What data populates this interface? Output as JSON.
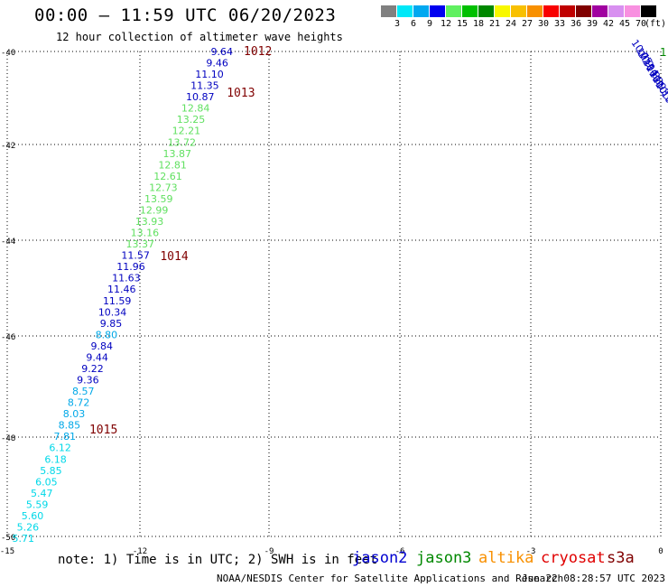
{
  "header": {
    "title": "00:00 – 11:59 UTC 06/20/2023",
    "subtitle": "12 hour collection of altimeter wave heights"
  },
  "colorbar": {
    "labels": [
      "3",
      "6",
      "9",
      "12",
      "15",
      "18",
      "21",
      "24",
      "27",
      "30",
      "33",
      "36",
      "39",
      "42",
      "45",
      "70"
    ],
    "unit": "(ft)",
    "colors": [
      "#808080",
      "#00e8f8",
      "#00a8f0",
      "#0000f0",
      "#60f060",
      "#00c000",
      "#008800",
      "#f8f800",
      "#f8c000",
      "#f89000",
      "#f80000",
      "#c00000",
      "#800000",
      "#a000a0",
      "#d890f0",
      "#f890e0",
      "#000000"
    ]
  },
  "map": {
    "lat_ticks": [
      "-40",
      "-42",
      "-44",
      "-46",
      "-48",
      "-50"
    ],
    "lon_ticks": [
      "-15",
      "-12",
      "-9",
      "-6",
      "-3",
      "0"
    ],
    "sea_state_color": "#800000",
    "track_main": [
      {
        "value": "9.64",
        "color": "#0000c0"
      },
      {
        "value": "9.46",
        "color": "#0000c0"
      },
      {
        "value": "11.10",
        "color": "#0000c0"
      },
      {
        "value": "11.35",
        "color": "#0000c0"
      },
      {
        "value": "10.87",
        "color": "#0000c0"
      },
      {
        "value": "12.84",
        "color": "#60e060"
      },
      {
        "value": "13.25",
        "color": "#60e060"
      },
      {
        "value": "12.21",
        "color": "#60e060"
      },
      {
        "value": "13.72",
        "color": "#60e060"
      },
      {
        "value": "13.87",
        "color": "#60e060"
      },
      {
        "value": "12.81",
        "color": "#60e060"
      },
      {
        "value": "12.61",
        "color": "#60e060"
      },
      {
        "value": "12.73",
        "color": "#60e060"
      },
      {
        "value": "13.59",
        "color": "#60e060"
      },
      {
        "value": "12.99",
        "color": "#60e060"
      },
      {
        "value": "13.93",
        "color": "#60e060"
      },
      {
        "value": "13.16",
        "color": "#60e060"
      },
      {
        "value": "13.37",
        "color": "#60e060"
      },
      {
        "value": "11.57",
        "color": "#0000c0"
      },
      {
        "value": "11.96",
        "color": "#0000c0"
      },
      {
        "value": "11.63",
        "color": "#0000c0"
      },
      {
        "value": "11.46",
        "color": "#0000c0"
      },
      {
        "value": "11.59",
        "color": "#0000c0"
      },
      {
        "value": "10.34",
        "color": "#0000c0"
      },
      {
        "value": "9.85",
        "color": "#0000c0"
      },
      {
        "value": "8.80",
        "color": "#00a8e8"
      },
      {
        "value": "9.84",
        "color": "#0000c0"
      },
      {
        "value": "9.44",
        "color": "#0000c0"
      },
      {
        "value": "9.22",
        "color": "#0000c0"
      },
      {
        "value": "9.36",
        "color": "#0000c0"
      },
      {
        "value": "8.57",
        "color": "#00a8e8"
      },
      {
        "value": "8.72",
        "color": "#00a8e8"
      },
      {
        "value": "8.03",
        "color": "#00a8e8"
      },
      {
        "value": "8.85",
        "color": "#00a8e8"
      },
      {
        "value": "7.81",
        "color": "#00a8e8"
      },
      {
        "value": "6.12",
        "color": "#00d8e8"
      },
      {
        "value": "6.18",
        "color": "#00d8e8"
      },
      {
        "value": "5.85",
        "color": "#00d8e8"
      },
      {
        "value": "6.05",
        "color": "#00d8e8"
      },
      {
        "value": "5.47",
        "color": "#00d8e8"
      },
      {
        "value": "5.59",
        "color": "#00d8e8"
      },
      {
        "value": "5.60",
        "color": "#00d8e8"
      },
      {
        "value": "5.26",
        "color": "#00d8e8"
      },
      {
        "value": "5.71",
        "color": "#00d8e8"
      }
    ],
    "track_corner": [
      "10.75",
      "10.9",
      "10.94",
      "10.8",
      "10.8",
      "10.9",
      "10.3",
      "10.5",
      "10"
    ],
    "corner_green": "1",
    "time_labels": [
      "1012",
      "1013",
      "1014",
      "1015"
    ]
  },
  "note": "note: 1) Time is in UTC; 2) SWH is in feet",
  "satellites": [
    {
      "name": "jason2",
      "color": "#0000d0"
    },
    {
      "name": "jason3",
      "color": "#008800"
    },
    {
      "name": "altika",
      "color": "#f89000"
    },
    {
      "name": "cryosat",
      "color": "#e00000"
    },
    {
      "name": "s3a",
      "color": "#800000"
    }
  ],
  "footer": {
    "credit": "NOAA/NESDIS Center for Satellite Applications and Research",
    "timestamp": "Jun 22 08:28:57 UTC 2023"
  }
}
